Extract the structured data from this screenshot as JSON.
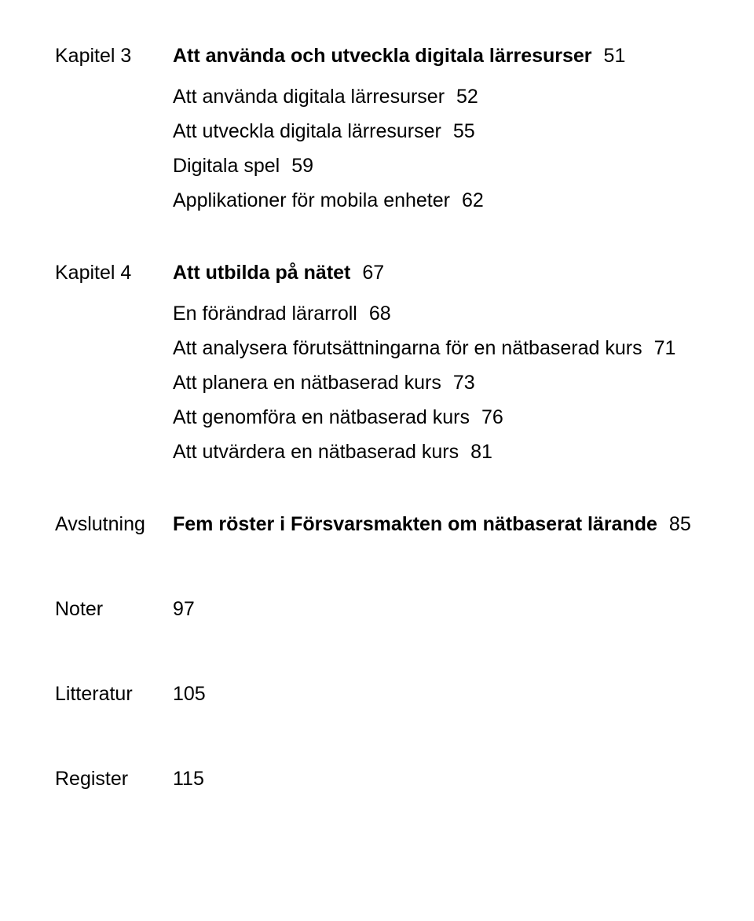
{
  "sections": [
    {
      "label": "Kapitel 3",
      "heading": {
        "title": "Att använda och utveckla digitala lärresurser",
        "page": "51",
        "bold": true
      },
      "items": [
        {
          "title": "Att använda digitala lärresurser",
          "page": "52"
        },
        {
          "title": "Att utveckla digitala lärresurser",
          "page": "55"
        },
        {
          "title": "Digitala spel",
          "page": "59"
        },
        {
          "title": "Applikationer för mobila enheter",
          "page": "62"
        }
      ]
    },
    {
      "label": "Kapitel 4",
      "heading": {
        "title": "Att utbilda på nätet",
        "page": "67",
        "bold": true
      },
      "items": [
        {
          "title": "En förändrad lärarroll",
          "page": "68"
        },
        {
          "title": "Att analysera förutsättningarna för en nätbaserad kurs",
          "page": "71"
        },
        {
          "title": "Att planera en nätbaserad kurs",
          "page": "73"
        },
        {
          "title": "Att genomföra en nätbaserad kurs",
          "page": "76"
        },
        {
          "title": "Att utvärdera en nätbaserad kurs",
          "page": "81"
        }
      ]
    },
    {
      "label": "Avslutning",
      "heading": {
        "title": "Fem röster i Försvarsmakten om nätbaserat lärande",
        "page": "85",
        "bold": true
      },
      "items": []
    },
    {
      "label": "Noter",
      "heading": {
        "title": "",
        "page": "97",
        "bold": false
      },
      "items": []
    },
    {
      "label": "Litteratur",
      "heading": {
        "title": "",
        "page": "105",
        "bold": false
      },
      "items": []
    },
    {
      "label": "Register",
      "heading": {
        "title": "",
        "page": "115",
        "bold": false
      },
      "items": []
    }
  ]
}
